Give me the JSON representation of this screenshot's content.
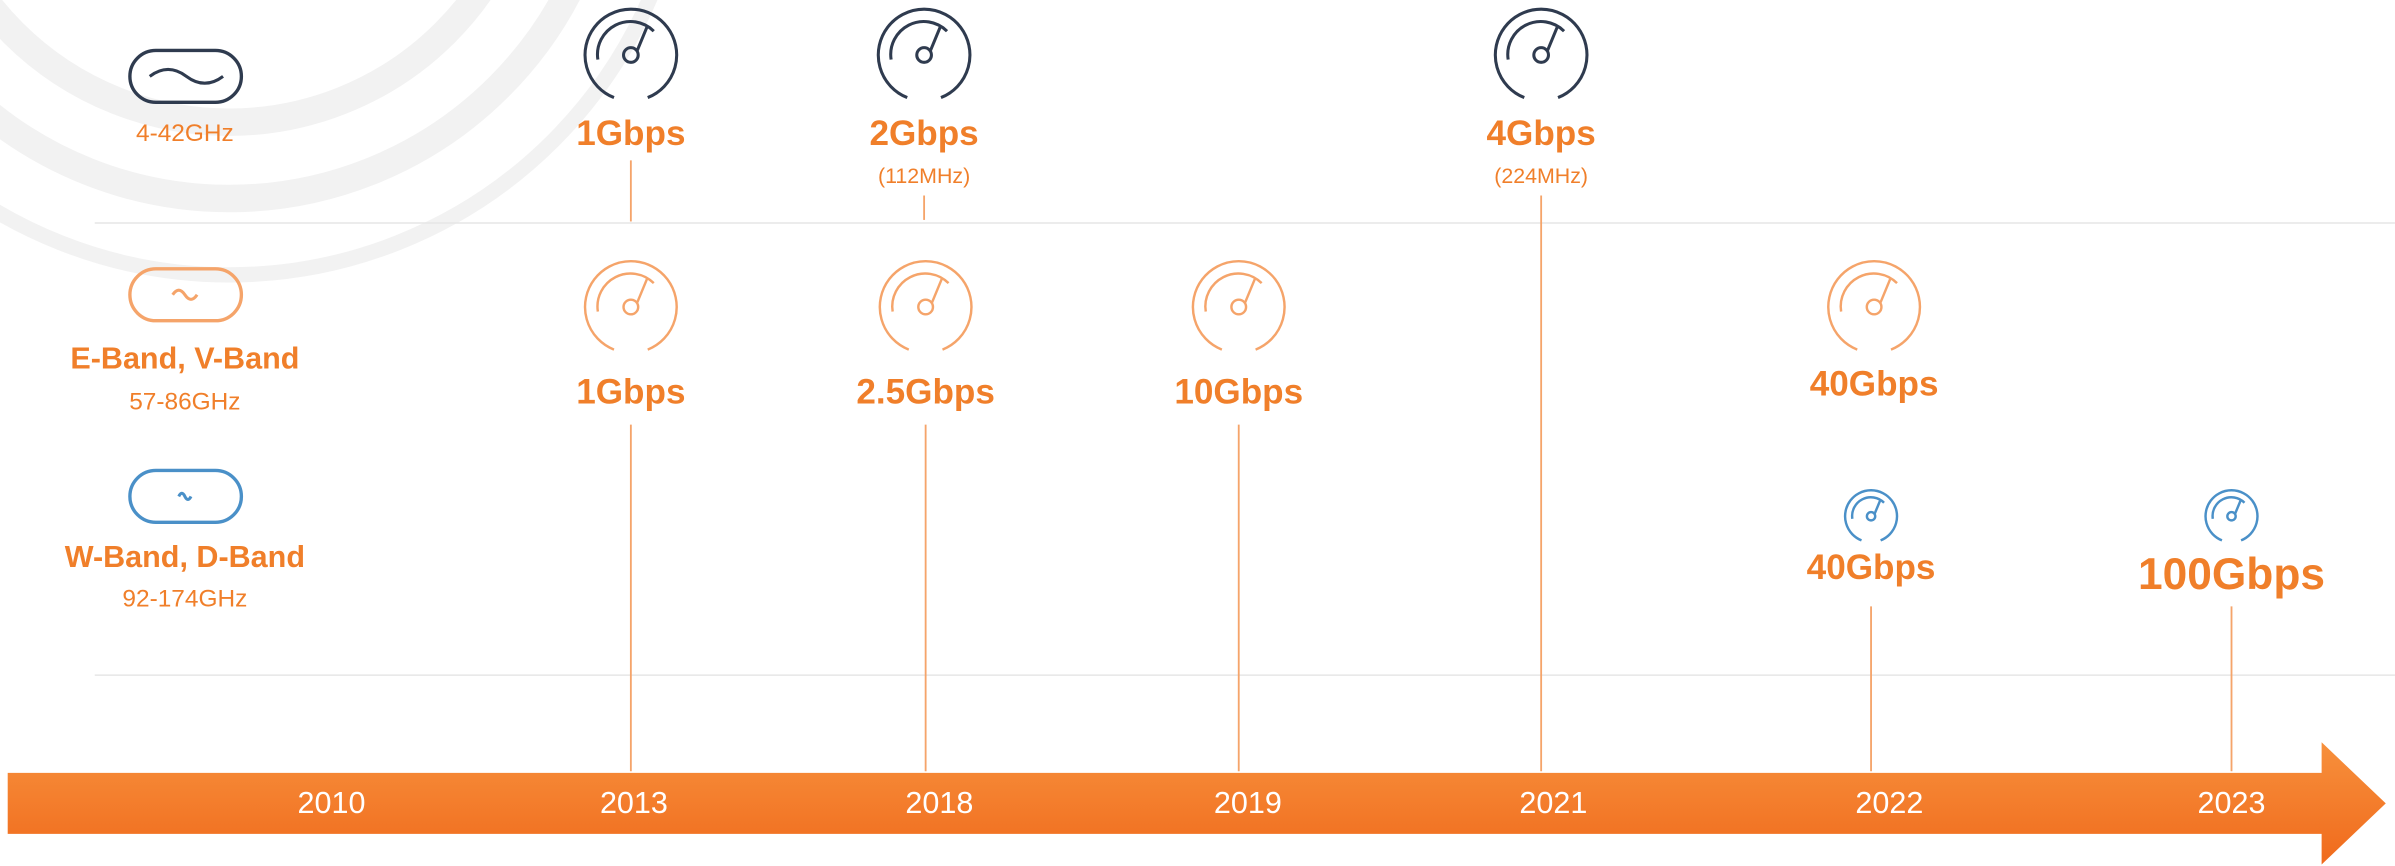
{
  "bands": [
    {
      "range": "4-42GHz",
      "milestones": [
        {
          "speed": "1Gbps"
        },
        {
          "speed": "2Gbps",
          "note": "(112MHz)"
        },
        {
          "speed": "4Gbps",
          "note": "(224MHz)"
        }
      ]
    },
    {
      "name": "E-Band, V-Band",
      "range": "57-86GHz",
      "milestones": [
        {
          "speed": "1Gbps"
        },
        {
          "speed": "2.5Gbps"
        },
        {
          "speed": "10Gbps"
        },
        {
          "speed": "40Gbps"
        }
      ]
    },
    {
      "name": "W-Band, D-Band",
      "range": "92-174GHz",
      "milestones": [
        {
          "speed": "40Gbps"
        },
        {
          "speed": "100Gbps"
        }
      ]
    }
  ],
  "timeline": [
    "2010",
    "2013",
    "2018",
    "2019",
    "2021",
    "2022",
    "2023"
  ]
}
